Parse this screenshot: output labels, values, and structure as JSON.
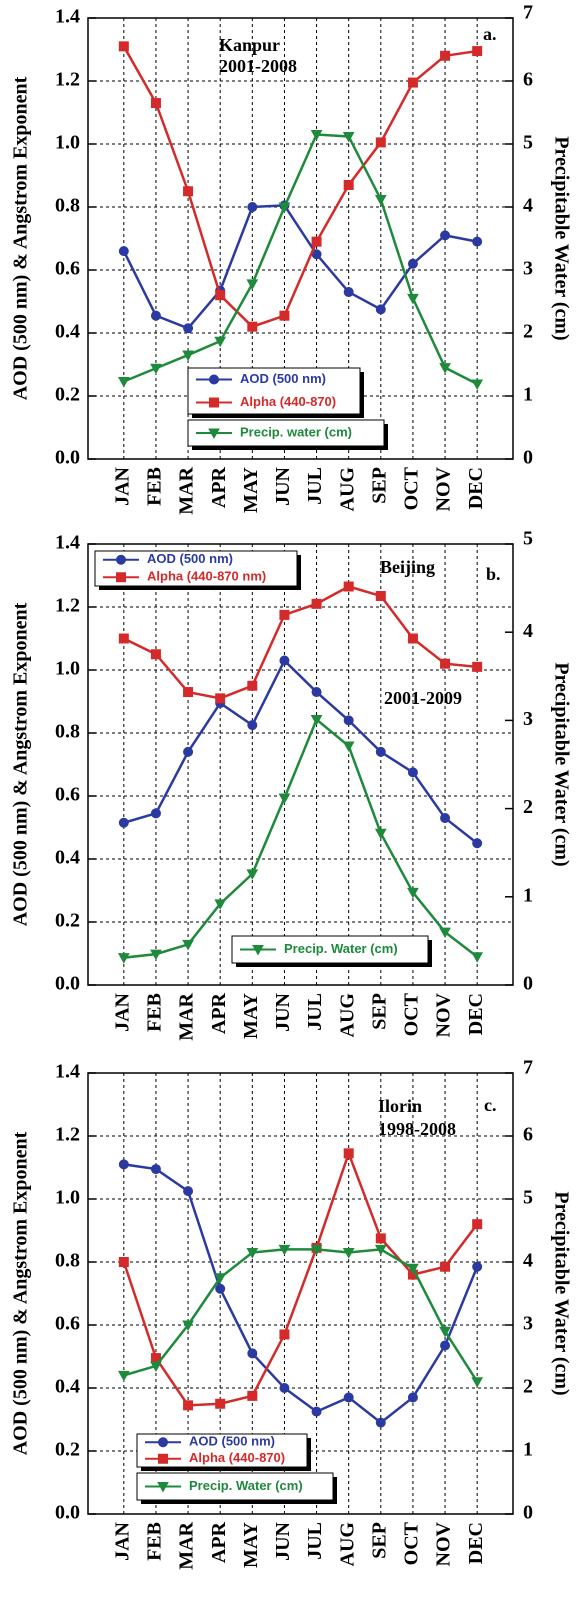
{
  "chart_data": [
    {
      "type": "line",
      "ylabel": "AOD (500 nm) & Angstrom Exponent",
      "y2label": "Precipitable Water (cm)",
      "annotations": [
        "Kanpur",
        "2001-2008",
        "a."
      ],
      "categories": [
        "JAN",
        "FEB",
        "MAR",
        "APR",
        "MAY",
        "JUN",
        "JUL",
        "AUG",
        "SEP",
        "OCT",
        "NOV",
        "DEC"
      ],
      "ylim": [
        0,
        1.4
      ],
      "yticks": [
        {
          "value": 0,
          "label": "0.0"
        },
        0.2,
        0.4,
        0.6,
        0.8,
        {
          "value": 1,
          "label": "1.0"
        },
        1.2,
        1.4
      ],
      "y2lim": [
        0,
        7
      ],
      "y2ticks": [
        0,
        1,
        2,
        3,
        4,
        5,
        6,
        7
      ],
      "grid": true,
      "series": [
        {
          "name": "AOD (500 nm)",
          "color": "#2b3aa0",
          "marker": "circle",
          "values": [
            0.66,
            0.455,
            0.415,
            0.535,
            0.8,
            0.805,
            0.65,
            0.53,
            0.475,
            0.62,
            0.71,
            0.69
          ]
        },
        {
          "name": "Alpha (440-870)",
          "color": "#d42a2a",
          "marker": "square",
          "values": [
            1.31,
            1.13,
            0.85,
            0.52,
            0.42,
            0.455,
            0.69,
            0.87,
            1.005,
            1.195,
            1.28,
            1.295
          ]
        },
        {
          "name": "Precip. water (cm)",
          "color": "#1e8a3c",
          "marker": "triangle-down",
          "axis": "y2",
          "values": [
            1.23,
            1.44,
            1.65,
            1.87,
            2.78,
            4.0,
            5.15,
            5.12,
            4.12,
            2.55,
            1.45,
            1.19
          ]
        }
      ]
    },
    {
      "type": "line",
      "ylabel": "AOD (500 nm) & Angstrom Exponent",
      "y2label": "Precipitable Water (cm)",
      "annotations": [
        "Beijing",
        "b.",
        "2001-2009"
      ],
      "categories": [
        "JAN",
        "FEB",
        "MAR",
        "APR",
        "MAY",
        "JUN",
        "JUL",
        "AUG",
        "SEP",
        "OCT",
        "NOV",
        "DEC"
      ],
      "ylim": [
        0,
        1.4
      ],
      "yticks": [
        {
          "value": 0,
          "label": "0.0"
        },
        0.2,
        0.4,
        0.6,
        0.8,
        {
          "value": 1,
          "label": "1.0"
        },
        1.2,
        1.4
      ],
      "y2lim": [
        0,
        5
      ],
      "y2ticks": [
        0,
        1,
        2,
        3,
        4,
        5
      ],
      "grid": true,
      "series": [
        {
          "name": "AOD (500 nm)",
          "color": "#2b3aa0",
          "marker": "circle",
          "values": [
            0.515,
            0.545,
            0.74,
            0.895,
            0.825,
            1.03,
            0.93,
            0.84,
            0.74,
            0.675,
            0.53,
            0.45
          ]
        },
        {
          "name": "Alpha (440-870 nm)",
          "color": "#d42a2a",
          "marker": "square",
          "values": [
            1.1,
            1.05,
            0.93,
            0.91,
            0.95,
            1.175,
            1.21,
            1.265,
            1.235,
            1.1,
            1.02,
            1.01
          ]
        },
        {
          "name": "Precip. Water (cm)",
          "color": "#1e8a3c",
          "marker": "triangle-down",
          "axis": "y2",
          "values": [
            0.31,
            0.35,
            0.46,
            0.92,
            1.26,
            2.12,
            3.01,
            2.71,
            1.72,
            1.05,
            0.6,
            0.32
          ]
        }
      ]
    },
    {
      "type": "line",
      "ylabel": "AOD (500 nm) & Angstrom Exponent",
      "y2label": "Precipitable Water (cm)",
      "annotations": [
        "Ilorin",
        "1998-2008",
        "c."
      ],
      "categories": [
        "JAN",
        "FEB",
        "MAR",
        "APR",
        "MAY",
        "JUN",
        "JUL",
        "AUG",
        "SEP",
        "OCT",
        "NOV",
        "DEC"
      ],
      "ylim": [
        0,
        1.4
      ],
      "yticks": [
        {
          "value": 0,
          "label": "0.0"
        },
        0.2,
        0.4,
        0.6,
        0.8,
        {
          "value": 1,
          "label": "1.0"
        },
        1.2,
        1.4
      ],
      "y2lim": [
        0,
        7
      ],
      "y2ticks": [
        0,
        1,
        2,
        3,
        4,
        5,
        6,
        7
      ],
      "grid": true,
      "series": [
        {
          "name": "AOD (500 nm)",
          "color": "#2b3aa0",
          "marker": "circle",
          "values": [
            1.11,
            1.095,
            1.025,
            0.715,
            0.51,
            0.4,
            0.325,
            0.37,
            0.29,
            0.37,
            0.535,
            0.785
          ]
        },
        {
          "name": "Alpha (440-870)",
          "color": "#d42a2a",
          "marker": "square",
          "values": [
            0.8,
            0.495,
            0.345,
            0.35,
            0.375,
            0.57,
            0.845,
            1.145,
            0.875,
            0.76,
            0.785,
            0.92
          ]
        },
        {
          "name": "Precip. Water (cm)",
          "color": "#1e8a3c",
          "marker": "triangle-down",
          "axis": "y2",
          "values": [
            2.2,
            2.35,
            3.0,
            3.75,
            4.15,
            4.2,
            4.2,
            4.15,
            4.2,
            3.9,
            2.9,
            2.1
          ]
        }
      ]
    }
  ]
}
